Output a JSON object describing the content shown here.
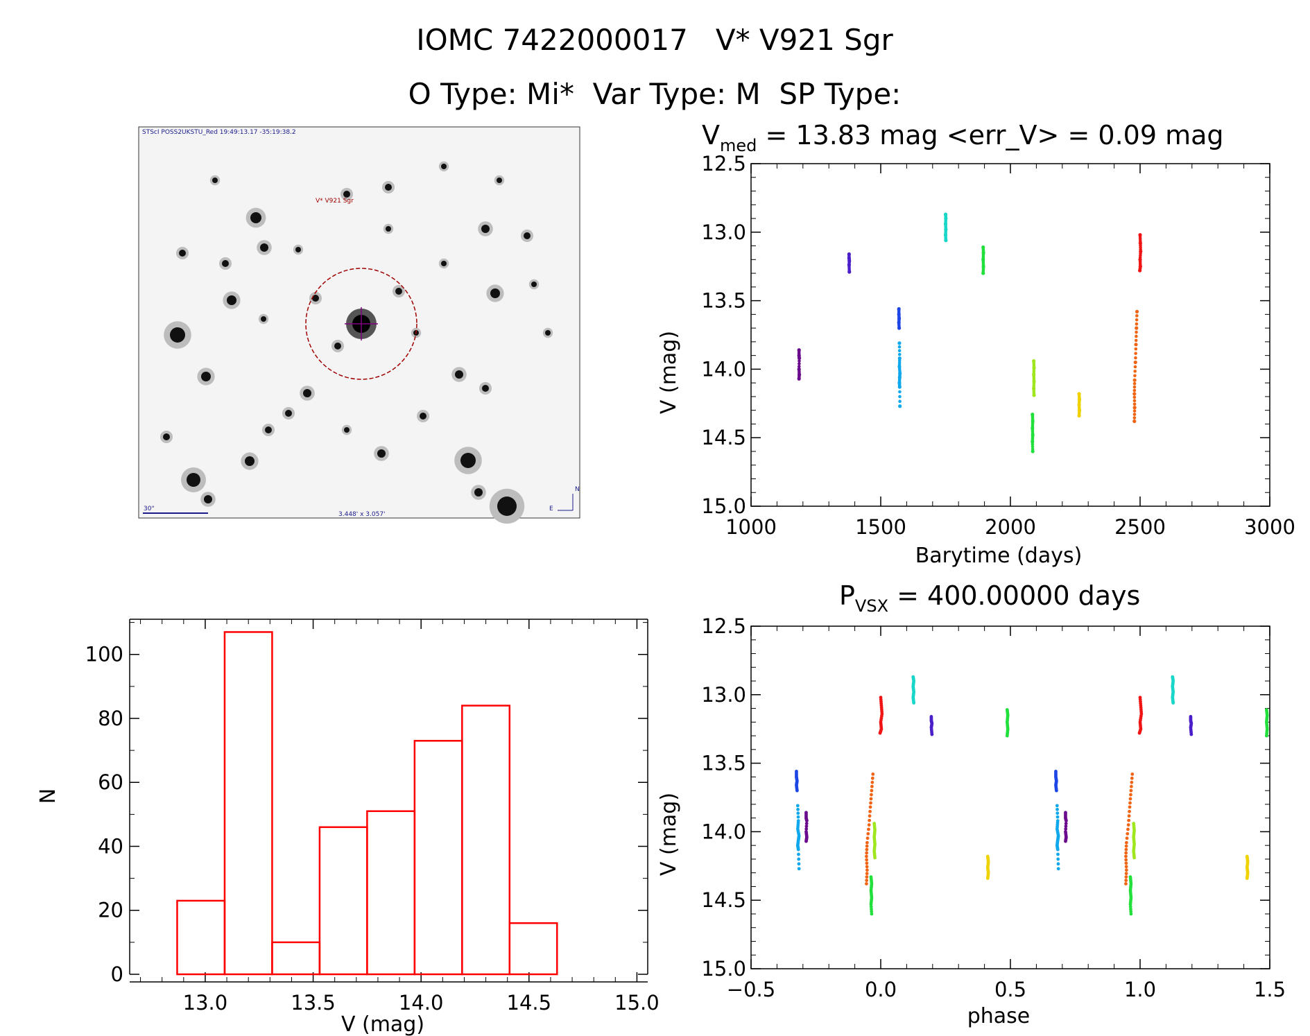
{
  "header": {
    "line1": "IOMC 7422000017   V* V921 Sgr",
    "line2": "O Type: Mi*  Var Type: M  SP Type:"
  },
  "finder": {
    "header": "STScI POSS2UKSTU_Red 19:49:13.17 -35:19:38.2",
    "label": "V* V921 Sgr",
    "scale": "30\"",
    "fov": "3.448' x 3.057'",
    "north": "N",
    "east": "E"
  },
  "colors": {
    "hist": "#ff0000",
    "circle": "#a00000",
    "cross": "#800080"
  },
  "chart_data": [
    {
      "id": "lightcurve",
      "type": "scatter",
      "title_prefix": "V",
      "title_sub": "med",
      "title_rest": " = 13.83 mag <err_V> = 0.09 mag",
      "xlabel": "Barytime (days)",
      "ylabel": "V (mag)",
      "xlim": [
        1000,
        3000
      ],
      "ylim": [
        15.0,
        12.5
      ],
      "xticks": [
        "1000",
        "1500",
        "2000",
        "2500",
        "3000"
      ],
      "yticks": [
        "12.5",
        "13.0",
        "13.5",
        "14.0",
        "14.5",
        "15.0"
      ],
      "series": [
        {
          "name": "s1",
          "color": "#6a0a8c",
          "points": [
            [
              1185,
              13.86
            ],
            [
              1185,
              13.9
            ],
            [
              1186,
              13.92
            ],
            [
              1185,
              14.0
            ],
            [
              1186,
              14.04
            ],
            [
              1185,
              14.07
            ]
          ]
        },
        {
          "name": "s2",
          "color": "#4a1ec8",
          "points": [
            [
              1378,
              13.16
            ],
            [
              1378,
              13.19
            ],
            [
              1379,
              13.21
            ],
            [
              1378,
              13.24
            ],
            [
              1379,
              13.29
            ]
          ]
        },
        {
          "name": "s3",
          "color": "#1e46e6",
          "points": [
            [
              1570,
              13.56
            ],
            [
              1570,
              13.6
            ],
            [
              1571,
              13.63
            ],
            [
              1570,
              13.66
            ],
            [
              1571,
              13.7
            ]
          ]
        },
        {
          "name": "s4",
          "color": "#10a8ec",
          "points": [
            [
              1572,
              13.81
            ],
            [
              1573,
              13.92
            ],
            [
              1572,
              13.98
            ],
            [
              1574,
              14.03
            ],
            [
              1573,
              14.06
            ],
            [
              1572,
              14.1
            ],
            [
              1573,
              14.13
            ],
            [
              1574,
              14.27
            ]
          ]
        },
        {
          "name": "s5",
          "color": "#18d6c8",
          "points": [
            [
              1750,
              12.87
            ],
            [
              1751,
              12.9
            ],
            [
              1750,
              12.94
            ],
            [
              1751,
              12.98
            ],
            [
              1750,
              13.02
            ],
            [
              1751,
              13.06
            ]
          ]
        },
        {
          "name": "s6",
          "color": "#22e03c",
          "points": [
            [
              1895,
              13.11
            ],
            [
              1896,
              13.15
            ],
            [
              1895,
              13.2
            ],
            [
              1896,
              13.25
            ],
            [
              1895,
              13.3
            ]
          ]
        },
        {
          "name": "s7",
          "color": "#22e03c",
          "points": [
            [
              2085,
              14.33
            ],
            [
              2086,
              14.38
            ],
            [
              2085,
              14.43
            ],
            [
              2086,
              14.48
            ],
            [
              2085,
              14.53
            ],
            [
              2086,
              14.6
            ]
          ]
        },
        {
          "name": "s8",
          "color": "#a0e61e",
          "points": [
            [
              2090,
              13.94
            ],
            [
              2091,
              13.99
            ],
            [
              2090,
              14.04
            ],
            [
              2091,
              14.09
            ],
            [
              2090,
              14.14
            ],
            [
              2091,
              14.19
            ]
          ]
        },
        {
          "name": "s9",
          "color": "#f0d200",
          "points": [
            [
              2265,
              14.18
            ],
            [
              2266,
              14.22
            ],
            [
              2265,
              14.26
            ],
            [
              2266,
              14.3
            ],
            [
              2265,
              14.34
            ]
          ]
        },
        {
          "name": "s10",
          "color": "#f06414",
          "points": [
            [
              2478,
              14.38
            ],
            [
              2479,
              14.28
            ],
            [
              2478,
              14.18
            ],
            [
              2479,
              14.08
            ],
            [
              2482,
              13.95
            ],
            [
              2484,
              13.82
            ],
            [
              2486,
              13.7
            ],
            [
              2488,
              13.58
            ]
          ]
        },
        {
          "name": "s11",
          "color": "#f01414",
          "points": [
            [
              2500,
              13.02
            ],
            [
              2501,
              13.08
            ],
            [
              2502,
              13.14
            ],
            [
              2500,
              13.2
            ],
            [
              2501,
              13.25
            ],
            [
              2499,
              13.28
            ]
          ]
        }
      ]
    },
    {
      "id": "histogram",
      "type": "bar",
      "xlabel": "V (mag)",
      "ylabel": "N",
      "xlim": [
        12.65,
        15.05
      ],
      "ylim": [
        0,
        111
      ],
      "xticks": [
        "13.0",
        "13.5",
        "14.0",
        "14.5",
        "15.0"
      ],
      "yticks": [
        "0",
        "20",
        "40",
        "60",
        "80",
        "100"
      ],
      "bin_edges": [
        12.87,
        13.09,
        13.31,
        13.53,
        13.75,
        13.97,
        14.19,
        14.41,
        14.63
      ],
      "values": [
        23,
        107,
        10,
        46,
        51,
        73,
        84,
        16
      ]
    },
    {
      "id": "phased",
      "type": "scatter",
      "title_prefix": "P",
      "title_sub": "VSX",
      "title_rest": " = 400.00000 days",
      "xlabel": "phase",
      "ylabel": "V (mag)",
      "xlim": [
        -0.5,
        1.5
      ],
      "ylim": [
        15.0,
        12.5
      ],
      "xticks": [
        "−0.5",
        "0.0",
        "0.5",
        "1.0",
        "1.5"
      ],
      "yticks": [
        "12.5",
        "13.0",
        "13.5",
        "14.0",
        "14.5",
        "15.0"
      ],
      "period": 400,
      "epoch": 1700,
      "source": "lightcurve"
    }
  ]
}
